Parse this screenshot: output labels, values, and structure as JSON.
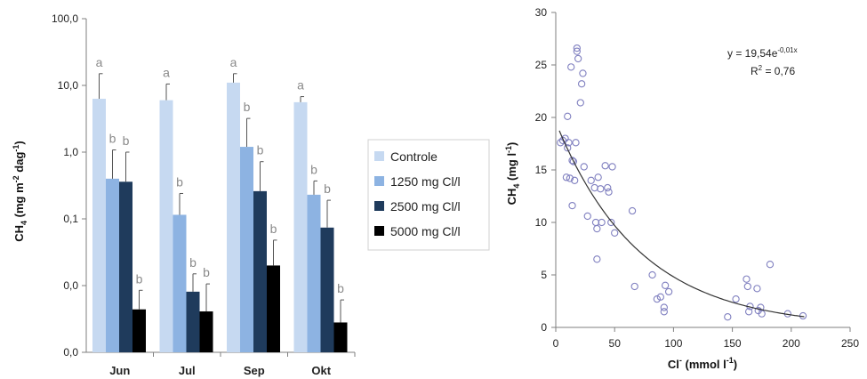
{
  "colors": {
    "controle": "#c6d9f1",
    "c1250": "#8db3e2",
    "c2500": "#1f3b5c",
    "c5000": "#000000",
    "scatter_point": "#8080c0",
    "axis": "#7f7f7f",
    "trend": "#333333"
  },
  "chart_data": [
    {
      "type": "bar",
      "scale": "log",
      "categories": [
        "Jun",
        "Jul",
        "Sep",
        "Okt"
      ],
      "ylim": [
        0.001,
        100
      ],
      "ytick_values": [
        0.001,
        0.01,
        0.1,
        1,
        10,
        100
      ],
      "ytick_labels": [
        "0,0",
        "0,0",
        "0,1",
        "1,0",
        "10,0",
        "100,0"
      ],
      "ylabel": {
        "main": "CH",
        "sub": "4",
        "unit_a": " (mg m",
        "sup_a": "-2",
        "unit_b": " dag",
        "sup_b": "-1",
        "unit_c": ")"
      },
      "xlabel": "",
      "title": "",
      "legend_position": "right",
      "series": [
        {
          "name": "Controle",
          "color_key": "controle",
          "values": [
            6.3,
            6.0,
            11.0,
            5.6
          ],
          "err": [
            15.0,
            10.5,
            15.0,
            6.8
          ],
          "letters": [
            "a",
            "a",
            "a",
            "a"
          ]
        },
        {
          "name": "1250 mg Cl/l",
          "color_key": "c1250",
          "values": [
            0.4,
            0.115,
            1.2,
            0.23
          ],
          "err": [
            1.08,
            0.24,
            3.2,
            0.37
          ],
          "letters": [
            "b",
            "b",
            "b",
            "b"
          ]
        },
        {
          "name": "2500 mg Cl/l",
          "color_key": "c2500",
          "values": [
            0.36,
            0.0081,
            0.26,
            0.074
          ],
          "err": [
            1.0,
            0.015,
            0.72,
            0.19
          ],
          "letters": [
            "b",
            "b",
            "b",
            "b"
          ]
        },
        {
          "name": "5000 mg Cl/l",
          "color_key": "c5000",
          "values": [
            0.0044,
            0.0041,
            0.02,
            0.0028
          ],
          "err": [
            0.0085,
            0.0106,
            0.048,
            0.0061
          ],
          "letters": [
            "b",
            "b",
            "b",
            "b"
          ]
        }
      ]
    },
    {
      "type": "scatter",
      "title": "",
      "xlim": [
        0,
        250
      ],
      "ylim": [
        0,
        30
      ],
      "xticks": [
        0,
        50,
        100,
        150,
        200,
        250
      ],
      "yticks": [
        0,
        5,
        10,
        15,
        20,
        25,
        30
      ],
      "xlabel": {
        "main": "Cl",
        "sup": "-",
        "unit": " (mmol l",
        "unit_sup": "-1",
        "unit_end": ")"
      },
      "ylabel": {
        "main": "CH",
        "sub": "4",
        "unit": " (mg l",
        "unit_sup": "-1",
        "unit_end": ")"
      },
      "equation": {
        "text": "y = 19,54e",
        "sup": "-0,01x"
      },
      "r2": {
        "text": "R",
        "sup": "2",
        "rest": " = 0,76"
      },
      "trendline": {
        "a": 19.54,
        "b": -0.014
      },
      "points": [
        [
          4,
          17.6
        ],
        [
          6,
          17.8
        ],
        [
          8,
          18.0
        ],
        [
          9,
          14.3
        ],
        [
          10,
          20.1
        ],
        [
          10,
          17.1
        ],
        [
          11,
          17.6
        ],
        [
          12,
          14.2
        ],
        [
          13,
          24.8
        ],
        [
          14,
          15.9
        ],
        [
          14,
          11.6
        ],
        [
          15,
          15.8
        ],
        [
          16,
          14.0
        ],
        [
          17,
          17.6
        ],
        [
          18,
          26.6
        ],
        [
          18,
          26.3
        ],
        [
          19,
          25.6
        ],
        [
          21,
          21.4
        ],
        [
          22,
          23.2
        ],
        [
          23,
          24.2
        ],
        [
          24,
          15.3
        ],
        [
          27,
          10.6
        ],
        [
          30,
          14.0
        ],
        [
          33,
          13.3
        ],
        [
          34,
          10.0
        ],
        [
          35,
          9.4
        ],
        [
          35,
          6.5
        ],
        [
          36,
          14.3
        ],
        [
          38,
          13.2
        ],
        [
          39,
          10.0
        ],
        [
          42,
          15.4
        ],
        [
          44,
          13.3
        ],
        [
          45,
          12.9
        ],
        [
          47,
          10.0
        ],
        [
          48,
          15.3
        ],
        [
          50,
          9.0
        ],
        [
          65,
          11.1
        ],
        [
          67,
          3.9
        ],
        [
          82,
          5.0
        ],
        [
          86,
          2.7
        ],
        [
          89,
          2.9
        ],
        [
          92,
          1.9
        ],
        [
          92,
          1.5
        ],
        [
          93,
          4.0
        ],
        [
          96,
          3.4
        ],
        [
          146,
          1.0
        ],
        [
          153,
          2.7
        ],
        [
          162,
          4.6
        ],
        [
          163,
          3.9
        ],
        [
          164,
          1.5
        ],
        [
          165,
          2.0
        ],
        [
          171,
          3.7
        ],
        [
          172,
          1.6
        ],
        [
          174,
          1.9
        ],
        [
          175,
          1.3
        ],
        [
          182,
          6.0
        ],
        [
          197,
          1.3
        ],
        [
          210,
          1.1
        ]
      ]
    }
  ]
}
